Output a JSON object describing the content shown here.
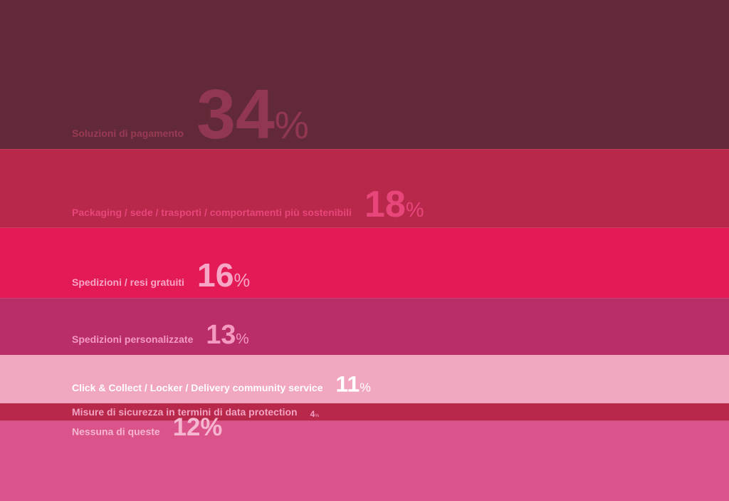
{
  "chart_data": {
    "type": "stacked-bands",
    "categories": [
      "Soluzioni di pagamento",
      "Packaging / sede / trasporti / comportamenti più sostenibili",
      "Spedizioni / resi gratuiti",
      "Spedizioni personalizzate",
      "Click & Collect / Locker / Delivery community service",
      "Misure di sicurezza in termini di data protection",
      "Nessuna di queste"
    ],
    "values": [
      34,
      18,
      16,
      13,
      11,
      4,
      12
    ],
    "value_labels": [
      "34%",
      "18%",
      "16%",
      "13%",
      "11%",
      "4%",
      "12%"
    ],
    "colors": [
      "#622a38",
      "#b8284b",
      "#e41a57",
      "#b92e69",
      "#f2a7c1",
      "#b8284b",
      "#da548b"
    ],
    "label_colors": [
      "#9a3a57",
      "#e8467a",
      "#f7a6c6",
      "#f49ac0",
      "#ffffff",
      "#f2a3c3",
      "#f6b6d0"
    ]
  }
}
